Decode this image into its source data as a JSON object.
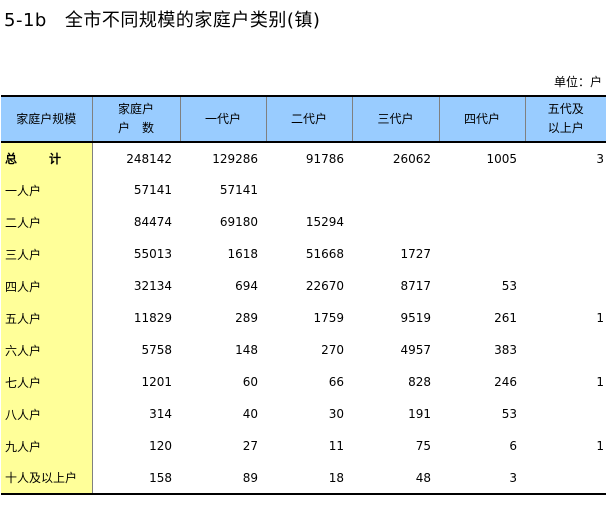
{
  "title": {
    "number": "5-1b",
    "text": "全市不同规模的家庭户类别(镇)"
  },
  "unit": "单位：户",
  "columns": [
    {
      "line1": "家庭户规模",
      "line2": ""
    },
    {
      "line1": "家庭户",
      "line2": "户　数"
    },
    {
      "line1": "一代户",
      "line2": ""
    },
    {
      "line1": "二代户",
      "line2": ""
    },
    {
      "line1": "三代户",
      "line2": ""
    },
    {
      "line1": "四代户",
      "line2": ""
    },
    {
      "line1": "五代及",
      "line2": "以上户"
    }
  ],
  "rows": [
    {
      "label": "总　计",
      "cells": [
        "248142",
        "129286",
        "91786",
        "26062",
        "1005",
        "3"
      ]
    },
    {
      "label": "一人户",
      "cells": [
        "57141",
        "57141",
        "",
        "",
        "",
        ""
      ]
    },
    {
      "label": "二人户",
      "cells": [
        "84474",
        "69180",
        "15294",
        "",
        "",
        ""
      ]
    },
    {
      "label": "三人户",
      "cells": [
        "55013",
        "1618",
        "51668",
        "1727",
        "",
        ""
      ]
    },
    {
      "label": "四人户",
      "cells": [
        "32134",
        "694",
        "22670",
        "8717",
        "53",
        ""
      ]
    },
    {
      "label": "五人户",
      "cells": [
        "11829",
        "289",
        "1759",
        "9519",
        "261",
        "1"
      ]
    },
    {
      "label": "六人户",
      "cells": [
        "5758",
        "148",
        "270",
        "4957",
        "383",
        ""
      ]
    },
    {
      "label": "七人户",
      "cells": [
        "1201",
        "60",
        "66",
        "828",
        "246",
        "1"
      ]
    },
    {
      "label": "八人户",
      "cells": [
        "314",
        "40",
        "30",
        "191",
        "53",
        ""
      ]
    },
    {
      "label": "九人户",
      "cells": [
        "120",
        "27",
        "11",
        "75",
        "6",
        "1"
      ]
    },
    {
      "label": "十人及以上户",
      "cells": [
        "158",
        "89",
        "18",
        "48",
        "3",
        ""
      ]
    }
  ]
}
